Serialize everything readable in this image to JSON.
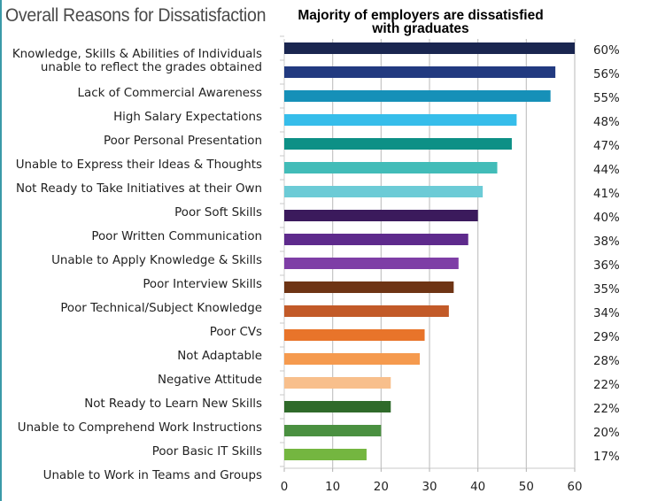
{
  "chart_data": {
    "type": "bar",
    "orientation": "horizontal",
    "title": "Overall Reasons for Dissatisfaction",
    "subtitle": "Majority of employers are dissatisfied with graduates",
    "xlabel": "",
    "ylabel": "",
    "xlim": [
      0,
      60
    ],
    "x_ticks": [
      0,
      10,
      20,
      30,
      40,
      50,
      60
    ],
    "grid": true,
    "legend": "none",
    "categories": [
      [
        "Knowledge, Skills & Abilities of Individuals",
        "unable to reflect the  grades obtained"
      ],
      [
        "Lack of Commercial Awareness"
      ],
      [
        "High Salary Expectations"
      ],
      [
        "Poor Personal Presentation"
      ],
      [
        "Unable to Express their Ideas & Thoughts"
      ],
      [
        "Not Ready to Take Initiatives at their Own"
      ],
      [
        "Poor Soft Skills"
      ],
      [
        "Poor Written Communication"
      ],
      [
        "Unable to Apply Knowledge & Skills"
      ],
      [
        "Poor Interview Skills"
      ],
      [
        "Poor Technical/Subject Knowledge"
      ],
      [
        "Poor CVs"
      ],
      [
        "Not Adaptable"
      ],
      [
        "Negative Attitude"
      ],
      [
        "Not Ready to Learn New Skills"
      ],
      [
        "Unable to Comprehend Work Instructions"
      ],
      [
        "Poor Basic IT Skills"
      ],
      [
        "Unable to Work in Teams and Groups"
      ]
    ],
    "values": [
      60,
      56,
      55,
      48,
      47,
      44,
      41,
      40,
      38,
      36,
      35,
      34,
      29,
      28,
      22,
      22,
      20,
      17
    ],
    "value_labels": [
      "60%",
      "56%",
      "55%",
      "48%",
      "47%",
      "44%",
      "41%",
      "40%",
      "38%",
      "36%",
      "35%",
      "34%",
      "29%",
      "28%",
      "22%",
      "22%",
      "20%",
      "17%"
    ],
    "bar_colors": [
      "#1a2650",
      "#223a80",
      "#1690b8",
      "#36bdea",
      "#0d9086",
      "#42bcb8",
      "#6ccbd6",
      "#3b1a5c",
      "#5e2a8c",
      "#7e3ea6",
      "#6e3414",
      "#c25a28",
      "#e8742a",
      "#f59a4e",
      "#f8bf8c",
      "#2f6a2a",
      "#4a9040",
      "#74b640"
    ]
  },
  "colors": {
    "left_rule": "#3a9aa8",
    "gridline": "#c4c4c4"
  }
}
